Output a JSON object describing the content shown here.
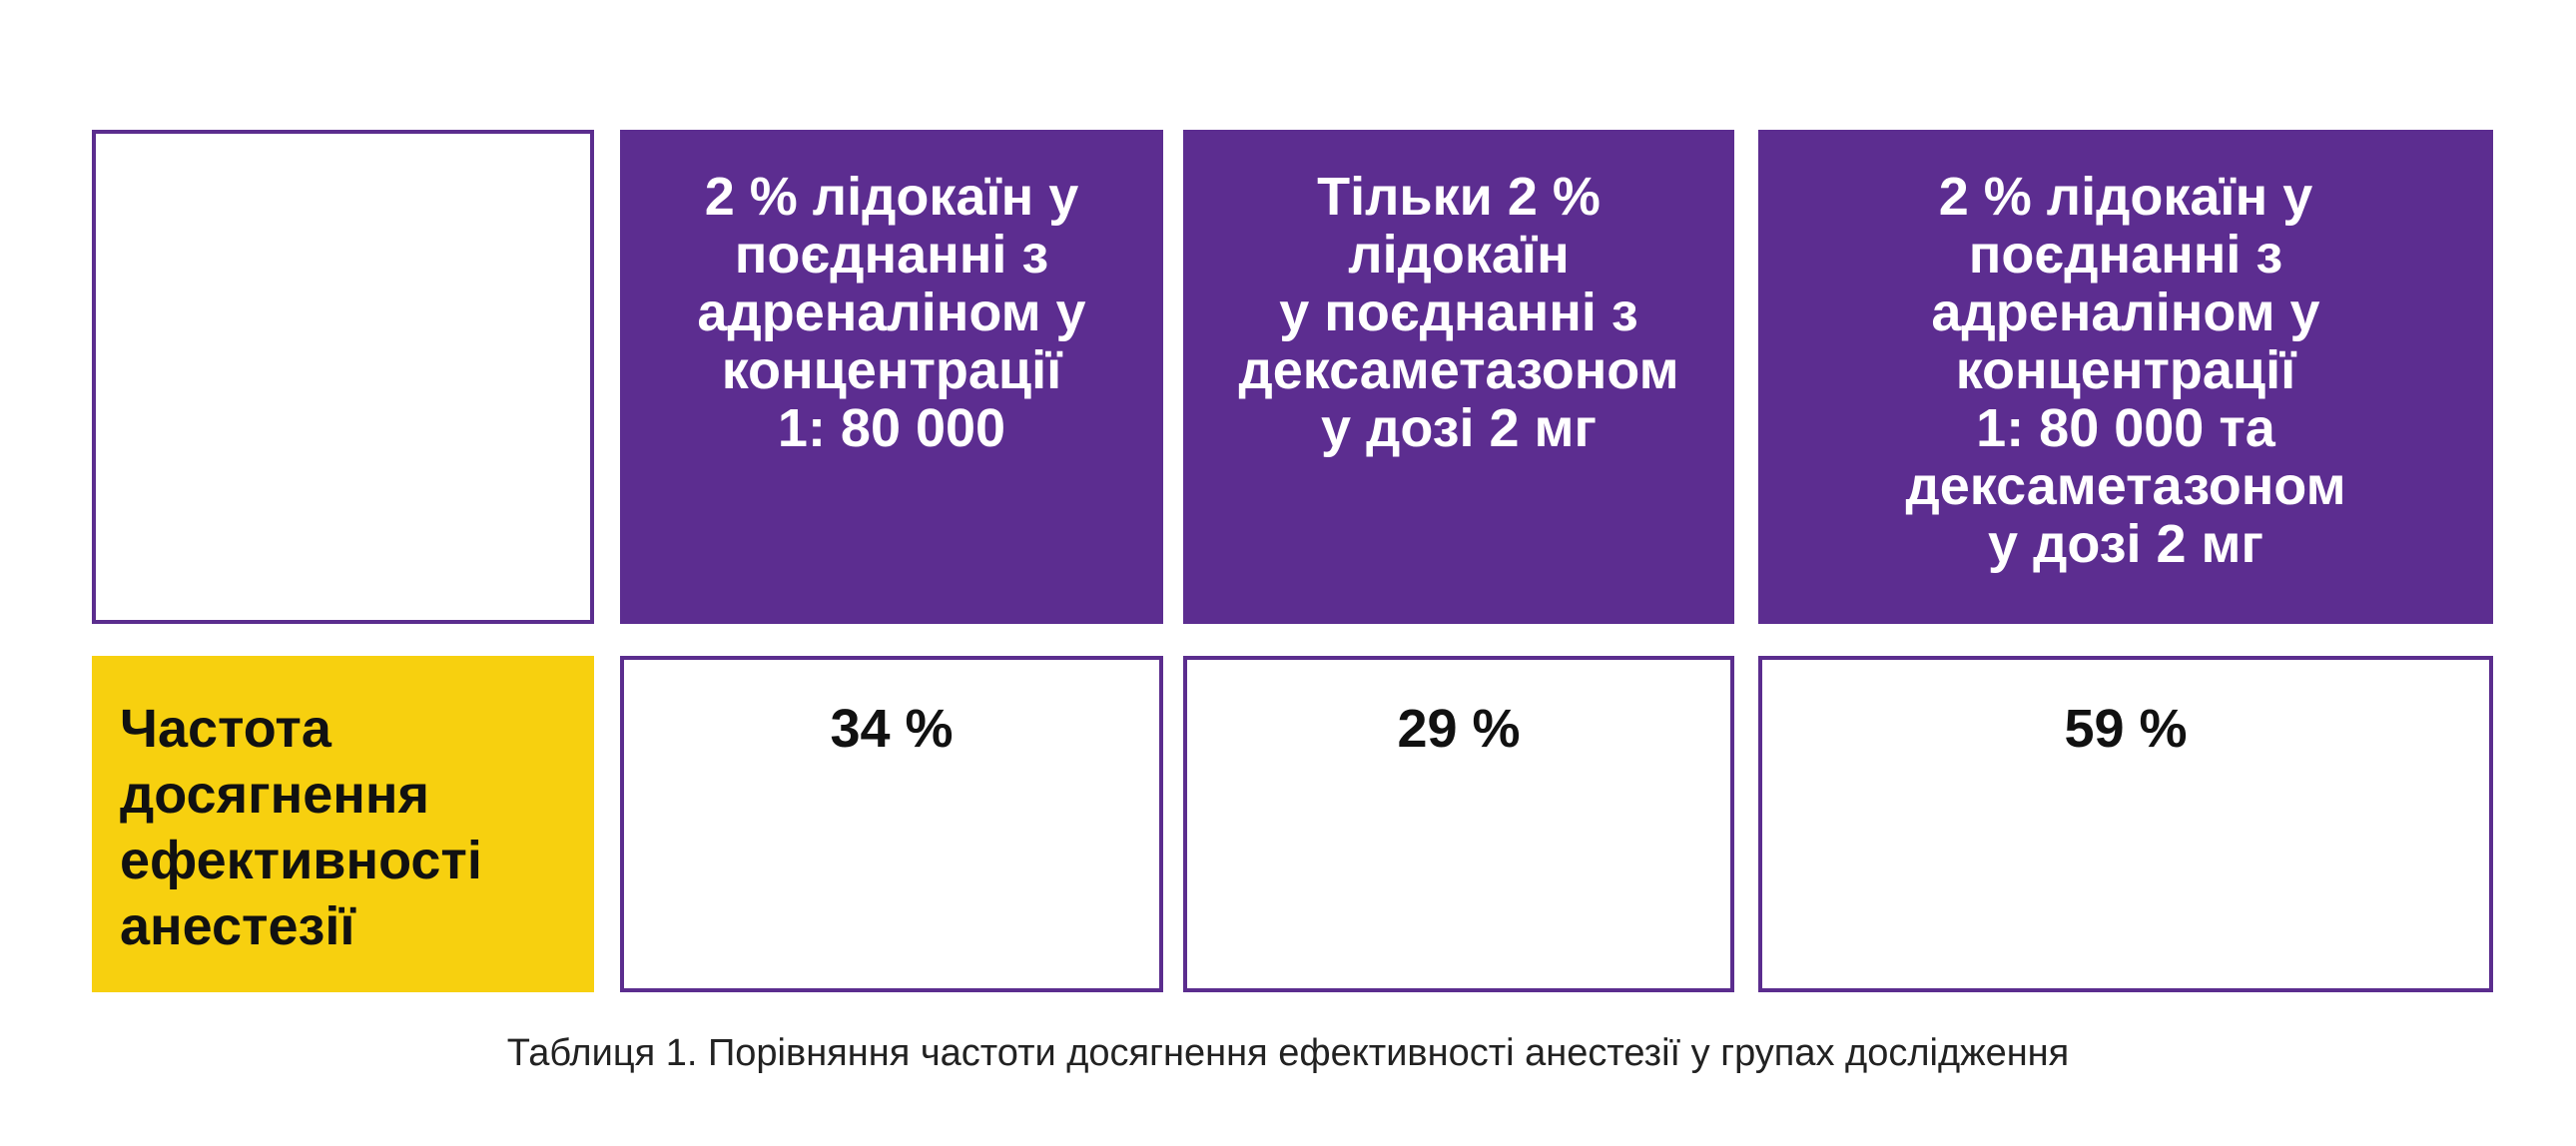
{
  "colors": {
    "header_bg": "#5c2d90",
    "header_text": "#ffffff",
    "row_label_bg": "#f7d00f",
    "border": "#5b2d8e"
  },
  "table": {
    "columns": [
      "2 % лідокаїн у\nпоєднанні з\nадреналіном у\nконцентрації\n1: 80 000",
      "Тільки 2 %\nлідокаїн\nу поєднанні з\nдексаметазоном\nу дозі 2 мг",
      "2 % лідокаїн у\nпоєднанні з\nадреналіном у\nконцентрації\n1: 80 000 та\nдексаметазоном\nу дозі 2 мг"
    ],
    "rows": [
      {
        "label": "Частота\nдосягнення\nефективності\nанестезії",
        "values": [
          "34 %",
          "29 %",
          "59 %"
        ]
      }
    ]
  },
  "caption": "Таблиця 1. Порівняння частоти досягнення ефективності анестезії у групах дослідження"
}
